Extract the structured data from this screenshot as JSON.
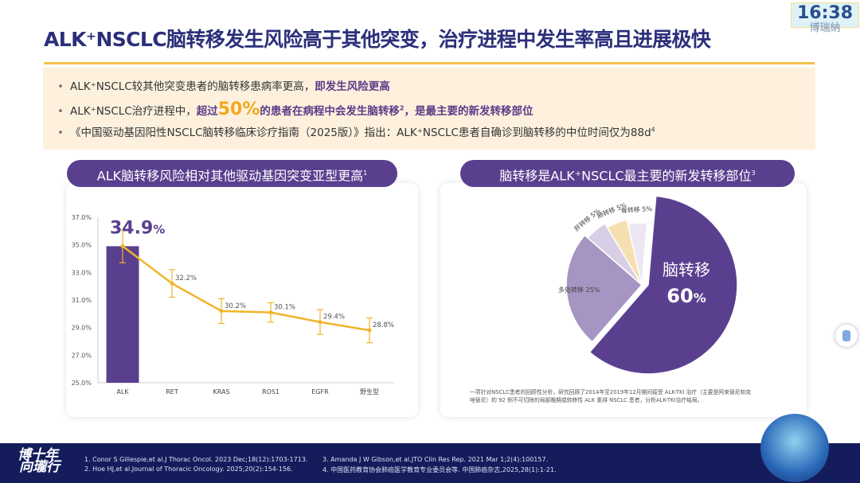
{
  "header": {
    "title": "ALK⁺NSCLC脑转移发生风险高于其他突变，治疗进程中发生率高且进展极快",
    "clock": "16:38",
    "clock_brand": "博瑞納"
  },
  "bullets": [
    {
      "text1": "ALK⁺NSCLC较其他突变患者的脑转移患病率更高，",
      "hl1": "即发生风险更高"
    },
    {
      "text1": "ALK⁺NSCLC治疗进程中，",
      "hl1": "超过",
      "big": "50%",
      "hl2": "的患者在病程中会发生脑转移",
      "sup": "2",
      "hl3": "，是最主要的新发转移部位"
    },
    {
      "text1": "《中国驱动基因阳性NSCLC脑转移临床诊疗指南（2025版）》指出：ALK⁺NSCLC患者自确诊到脑转移的中位时间仅为88d",
      "sup": "4"
    }
  ],
  "left_panel": {
    "title": "ALK脑转移风险相对其他驱动基因突变亚型更高",
    "title_sup": "1"
  },
  "right_panel": {
    "title": "脑转移是ALK⁺NSCLC最主要的新发转移部位",
    "title_sup": "3"
  },
  "chart_data": [
    {
      "type": "bar",
      "categories": [
        "ALK",
        "RET",
        "KRAS",
        "ROS1",
        "EGFR",
        "野生型"
      ],
      "values": [
        34.9,
        32.2,
        30.2,
        30.1,
        29.4,
        28.8
      ],
      "labels": [
        "34.9%",
        "32.2%",
        "30.2%",
        "30.1%",
        "29.4%",
        "28.8%"
      ],
      "error": [
        1.2,
        1.0,
        0.9,
        0.7,
        0.9,
        0.9
      ],
      "bar_shown_for": [
        "ALK"
      ],
      "line": true,
      "ylim": [
        25.0,
        37.0
      ],
      "yticks": [
        "25.0%",
        "27.0%",
        "29.0%",
        "31.0%",
        "33.0%",
        "35.0%",
        "37.0%"
      ],
      "highlight_label": {
        "value": "34.9",
        "unit": "%"
      },
      "colors": {
        "bar": "#5b3f8f",
        "line": "#f0b52a"
      }
    },
    {
      "type": "pie",
      "slices": [
        {
          "label": "脑转移",
          "value": 60,
          "color": "#5b3f8f"
        },
        {
          "label": "多处转移 25%",
          "value": 25,
          "color": "#a695c2"
        },
        {
          "label": "肝转移 5%",
          "value": 5,
          "color": "#d8cfe6"
        },
        {
          "label": "肺转移 5%",
          "value": 5,
          "color": "#f6dfb0"
        },
        {
          "label": "骨转移 5%",
          "value": 5,
          "color": "#ece7f3"
        }
      ],
      "main_label": "脑转移",
      "main_value": "60",
      "main_unit": "%"
    }
  ],
  "pie_note": "一项针对NSCLC患者的回顾性分析，研究回顾了2014年至2019年12月期间接受 ALK-TKI 治疗（主要是阿来替尼和克唑替尼）的 92 例不可切除的局部晚期或转移性 ALK 重排 NSCLC 患者，分析ALK-TKI治疗结局。",
  "footer": {
    "logo_line1": "博十年",
    "logo_line2": "向瓏行",
    "refs": [
      "1.  Conor S Gillespie,et al.J Thorac Oncol. 2023 Dec;18(12):1703-1713.",
      "2.  Hoe HJ,et al.Journal of Thoracic Oncology. 2025;20(2):154-156.",
      "3.  Amanda J W Gibson,et al.JTO Clin Res Rep. 2021 Mar 1;2(4):100157.",
      "4.  中国医药教育协会肺癌医学教育专业委员会等. 中国肺癌杂志,2025,28(1):1-21."
    ]
  }
}
